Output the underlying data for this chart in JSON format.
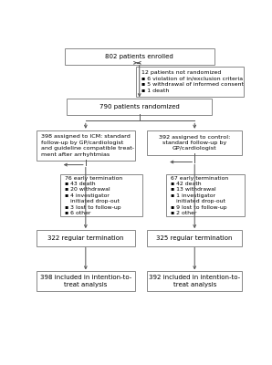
{
  "bg_color": "#ffffff",
  "box_fc": "#ffffff",
  "box_ec": "#888888",
  "arrow_color": "#555555",
  "text_color": "#000000",
  "fig_width": 2.98,
  "fig_height": 4.0,
  "font_size": 5.0,
  "lw": 0.7,
  "enrolled_text": "802 patients enrolled",
  "not_rand_text": "12 patients not randomized\n▪ 6 violation of in/exclusion criteria\n▪ 5 withdrawal of informed consent\n▪ 1 death",
  "rand_text": "790 patients randomized",
  "left_arm_text": "398 assigned to ICM: standard\nfollow-up by GP/cardiologist\nand guideline compatible treat-\nment after arrhyhtmias",
  "right_arm_text": "392 assigned to control:\nstandard follow-up by\nGP/cardiologist",
  "left_early_text": "76 early termination\n▪ 43 death\n▪ 20 withdrawal\n▪ 4 investigator\n   initiated drop-out\n▪ 3 lost to follow-up\n▪ 6 other",
  "right_early_text": "67 early termination\n▪ 42 death\n▪ 13 withdrawal\n▪ 1 investigator\n   initiated drop-out\n▪ 9 lost to follow-up\n▪ 2 other",
  "left_reg_text": "322 regular termination",
  "right_reg_text": "325 regular termination",
  "left_itt_text": "398 included in intention-to-\ntreat analysis",
  "right_itt_text": "392 included in intention-to-\ntreat analysis"
}
